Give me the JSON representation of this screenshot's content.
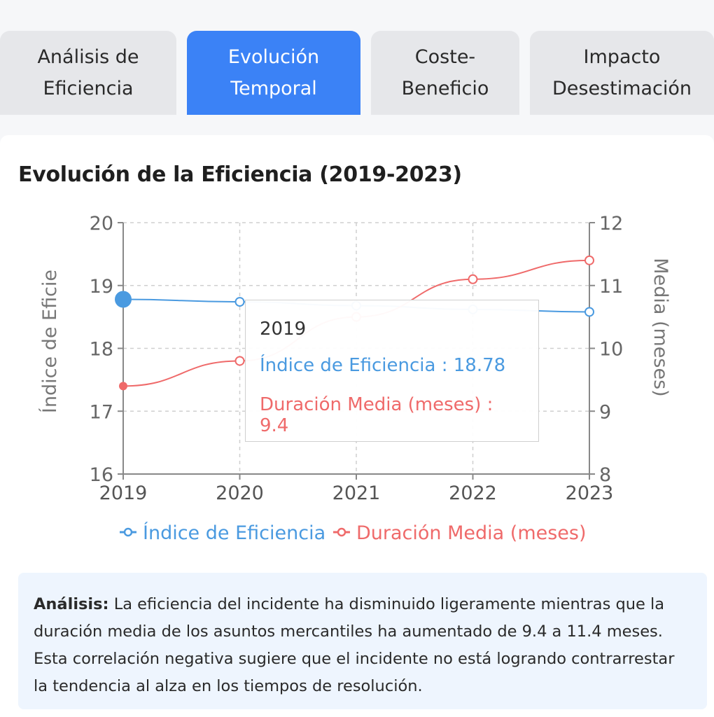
{
  "tabs": [
    {
      "label": "Análisis de\nEficiencia",
      "active": false
    },
    {
      "label": "Evolución\nTemporal",
      "active": true
    },
    {
      "label": "Coste-\nBeneficio",
      "active": false
    },
    {
      "label": "Impacto\nDesestimación",
      "active": false
    }
  ],
  "colors": {
    "accent": "#3b82f6",
    "series_blue": "#4a9ae0",
    "series_red": "#ef6a6a"
  },
  "chart_data": {
    "type": "line",
    "title": "Evolución de la Eficiencia (2019-2023)",
    "x": [
      "2019",
      "2020",
      "2021",
      "2022",
      "2023"
    ],
    "y_left": {
      "label": "Índice de Eficie",
      "ticks": [
        "16",
        "17",
        "18",
        "19",
        "20"
      ],
      "lim": [
        16,
        20
      ]
    },
    "y_right": {
      "label": "Media (meses)",
      "ticks": [
        "8",
        "9",
        "10",
        "11",
        "12"
      ],
      "lim": [
        8,
        12
      ]
    },
    "series": [
      {
        "name": "Índice de Eficiencia",
        "axis": "left",
        "values": [
          18.78,
          18.74,
          18.68,
          18.62,
          18.58
        ]
      },
      {
        "name": "Duración Media (meses)",
        "axis": "right",
        "values": [
          9.4,
          9.8,
          10.5,
          11.1,
          11.4
        ]
      }
    ],
    "grid": true,
    "legend": "bottom-center",
    "tooltip": {
      "header": "2019",
      "row1": "Índice de Eficiencia : 18.78",
      "row2": "Duración Media (meses) : 9.4"
    }
  },
  "analysis": {
    "label": "Análisis:",
    "text": " La eficiencia del incidente ha disminuido ligeramente mientras que la duración media de los asuntos mercantiles ha aumentado de 9.4 a 11.4 meses. Esta correlación negativa sugiere que el incidente no está logrando contrarrestar la tendencia al alza en los tiempos de resolución."
  }
}
